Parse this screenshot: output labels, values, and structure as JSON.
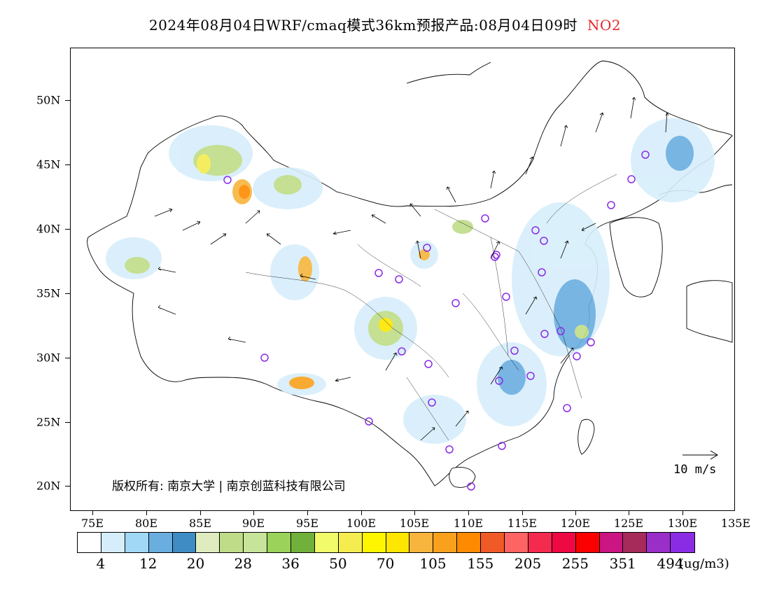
{
  "title": {
    "main": "2024年08月04日WRF/cmaq模式36km预报产品:08月04日09时",
    "species": "NO2"
  },
  "axes": {
    "lat_labels": [
      "50N",
      "45N",
      "40N",
      "35N",
      "30N",
      "25N",
      "20N"
    ],
    "lon_labels": [
      "75E",
      "80E",
      "85E",
      "90E",
      "95E",
      "100E",
      "105E",
      "110E",
      "115E",
      "120E",
      "125E",
      "130E",
      "135E"
    ]
  },
  "copyright": "版权所有: 南京大学 | 南京创蓝科技有限公司",
  "wind_reference": {
    "label": "10 m/s"
  },
  "colorbar": {
    "colors": [
      "#ffffff",
      "#d6eefb",
      "#a0d8f5",
      "#6aaee0",
      "#3f8bc4",
      "#dfecc0",
      "#bfdc88",
      "#c6e49a",
      "#9ad25a",
      "#71b03a",
      "#f2fc6b",
      "#f5ec50",
      "#fef500",
      "#fde600",
      "#f7b53d",
      "#f9a11d",
      "#fd8a00",
      "#f05a27",
      "#ff6464",
      "#f52a4f",
      "#ee0844",
      "#fb0000",
      "#cb1583",
      "#a62b5b",
      "#9a2ec9",
      "#8b2ce5"
    ],
    "labels": [
      "4",
      "12",
      "20",
      "28",
      "36",
      "50",
      "70",
      "105",
      "155",
      "205",
      "255",
      "351",
      "494"
    ],
    "unit": "(ug/m3)"
  },
  "colors": {
    "species_title": "#e8262a",
    "city_marker": "#8b2ce5"
  }
}
